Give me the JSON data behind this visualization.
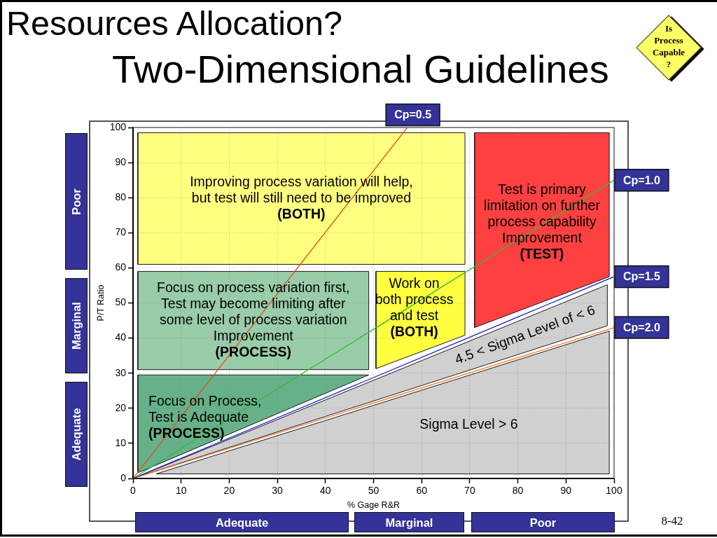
{
  "chart_data": {
    "type": "line",
    "title": "Resources Allocation?",
    "subtitle": "Two-Dimensional Guidelines",
    "xlabel": "% Gage R&R",
    "ylabel": "P/T Ratio",
    "xlim": [
      0,
      100
    ],
    "ylim": [
      0,
      100
    ],
    "xticks": [
      0,
      10,
      20,
      30,
      40,
      50,
      60,
      70,
      80,
      90,
      100
    ],
    "yticks": [
      0,
      10,
      20,
      30,
      40,
      50,
      60,
      70,
      80,
      90,
      100
    ],
    "grid": true,
    "series": [
      {
        "name": "Cp=0.5",
        "color": "#e84c1c",
        "x": [
          0,
          57
        ],
        "values": [
          0,
          100
        ]
      },
      {
        "name": "Cp=1.0",
        "color": "#33bb33",
        "x": [
          0,
          100
        ],
        "values": [
          0,
          85
        ]
      },
      {
        "name": "Cp=1.5",
        "color": "#2222cc",
        "x": [
          0,
          100
        ],
        "values": [
          0,
          57.5
        ]
      },
      {
        "name": "Cp=2.0",
        "color": "#ff7722",
        "x": [
          0,
          100
        ],
        "values": [
          0,
          43
        ]
      },
      {
        "type": "area",
        "color": "#ffff80",
        "x": [
          1,
          69
        ],
        "values": [
          null,
          null
        ],
        "lower": [
          61,
          61
        ],
        "upper": [
          98.5,
          98.5
        ]
      },
      {
        "type": "area",
        "color": "#ff4040",
        "x": [
          71,
          99
        ],
        "values": [
          null,
          null
        ],
        "lower": [
          43,
          57.5
        ],
        "upper": [
          98.5,
          98.5
        ]
      },
      {
        "type": "area",
        "color": "#99cca9",
        "x": [
          1,
          49
        ],
        "values": [
          null,
          null
        ],
        "lower": [
          31,
          31
        ],
        "upper": [
          59,
          59
        ]
      },
      {
        "type": "area",
        "color": "#ffff40",
        "x": [
          50.5,
          69
        ],
        "values": [
          null,
          null
        ],
        "lower": [
          31.3,
          40.8
        ],
        "upper": [
          59,
          59
        ]
      },
      {
        "type": "area",
        "color": "#66b18a",
        "x": [
          1,
          49
        ],
        "values": [
          null,
          null
        ],
        "lower": [
          1.6,
          29.5
        ],
        "upper": [
          29.5,
          29.5
        ]
      },
      {
        "type": "area",
        "color": "#d0d0d0",
        "x": [
          1.5,
          98.6
        ],
        "values": [
          null,
          null
        ],
        "lower": [
          0.7,
          43.5
        ],
        "upper": [
          0.8,
          55.2
        ]
      },
      {
        "type": "area",
        "color": "#d0d0d0",
        "x": [
          4.8,
          99
        ],
        "values": [
          null,
          null
        ],
        "lower": [
          1.3,
          1.3
        ],
        "upper": [
          1.3,
          42
        ]
      }
    ],
    "annotations": [
      "Improving process variation will help,\nbut test will still need to be improved\n(BOTH)",
      "Test is primary\nlimitation on further\nprocess capability\nImprovement\n(TEST)",
      "Focus on process variation first,\nTest may become limiting after\nsome level of process variation\nImprovement\n(PROCESS)",
      "Work on\nboth process\nand test\n(BOTH)",
      "Focus on Process,\nTest is Adequate\n(PROCESS)",
      "4.5 < Sigma Level of < 6",
      "Sigma Level > 6",
      "Poor",
      "Marginal",
      "Adequate",
      "Adequate",
      "Marginal",
      "Poor",
      "Is\nProcess\nCapable\n?",
      "8-42"
    ]
  }
}
